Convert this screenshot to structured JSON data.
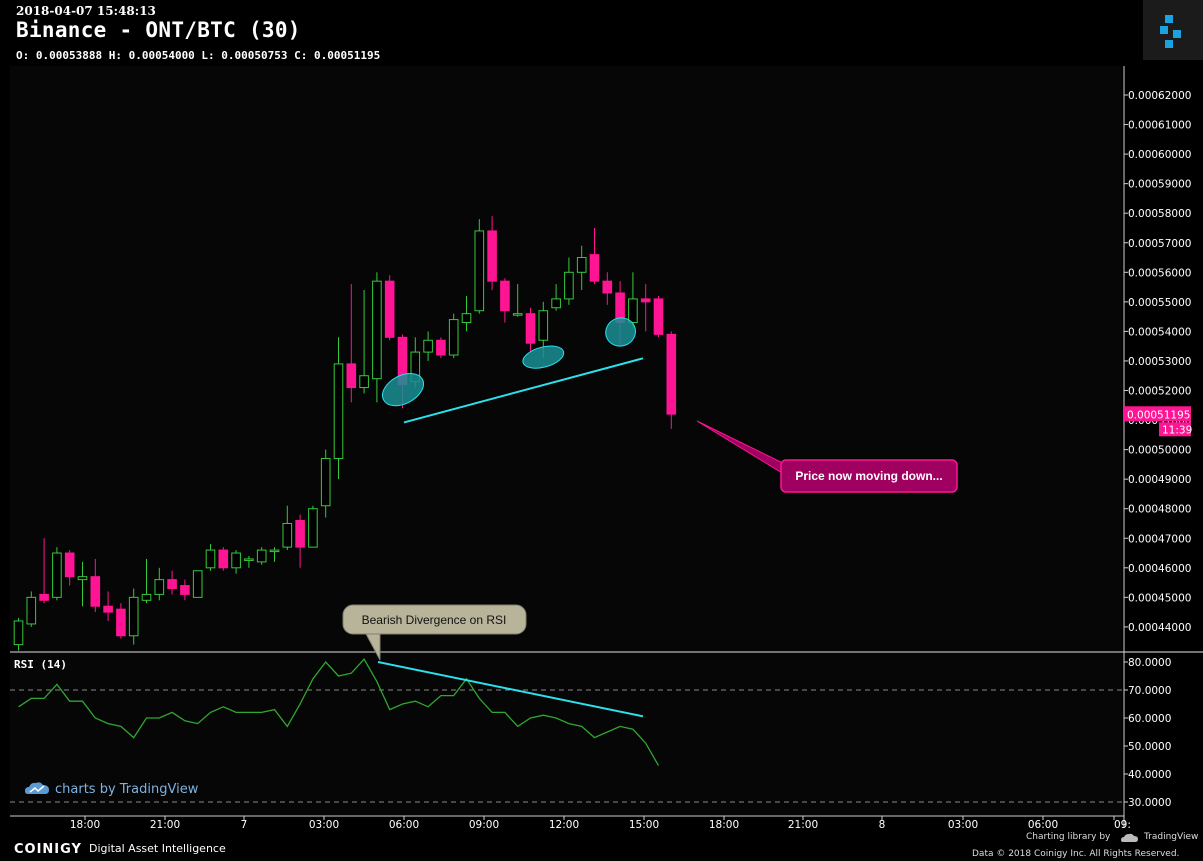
{
  "header": {
    "timestamp": "2018-04-07 15:48:13",
    "title": "Binance - ONT/BTC (30)",
    "ohlc": "O: 0.00053888 H: 0.00054000 L: 0.00050753 C: 0.00051195"
  },
  "colors": {
    "up": "#35c93c",
    "down": "#ff1493",
    "annotation_line": "#2de1ec",
    "ellipse_fill": "#1a8f94",
    "rsi": "#2ea82e"
  },
  "chart_data": [
    {
      "type": "candlestick",
      "title": "Binance - ONT/BTC (30)",
      "x_tick_labels": [
        "18:00",
        "21:00",
        "7",
        "03:00",
        "06:00",
        "09:00",
        "12:00",
        "15:00",
        "18:00",
        "21:00",
        "8",
        "03:00",
        "06:00",
        "09:"
      ],
      "y_tick_labels": [
        "0.00062000",
        "0.00061000",
        "0.00060000",
        "0.00059000",
        "0.00058000",
        "0.00057000",
        "0.00056000",
        "0.00055000",
        "0.00054000",
        "0.00053000",
        "0.00052000",
        "0.00051000",
        "0.00050000",
        "0.00049000",
        "0.00048000",
        "0.00047000",
        "0.00046000",
        "0.00045000",
        "0.00044000"
      ],
      "ylim": [
        0.000433,
        0.000632
      ],
      "last_price_label": "0.00051195",
      "countdown_label": "11:39",
      "candles": [
        {
          "t": 0,
          "o": 0.000434,
          "h": 0.000443,
          "l": 0.000432,
          "c": 0.000442
        },
        {
          "t": 1,
          "o": 0.000441,
          "h": 0.000452,
          "l": 0.00044,
          "c": 0.00045
        },
        {
          "t": 2,
          "o": 0.000451,
          "h": 0.00047,
          "l": 0.000448,
          "c": 0.000449
        },
        {
          "t": 3,
          "o": 0.00045,
          "h": 0.000467,
          "l": 0.000449,
          "c": 0.000465
        },
        {
          "t": 4,
          "o": 0.000465,
          "h": 0.000466,
          "l": 0.000454,
          "c": 0.000457
        },
        {
          "t": 5,
          "o": 0.000456,
          "h": 0.000462,
          "l": 0.000447,
          "c": 0.000457
        },
        {
          "t": 6,
          "o": 0.000457,
          "h": 0.000463,
          "l": 0.000445,
          "c": 0.000447
        },
        {
          "t": 7,
          "o": 0.000447,
          "h": 0.000452,
          "l": 0.000442,
          "c": 0.000445
        },
        {
          "t": 8,
          "o": 0.000446,
          "h": 0.000448,
          "l": 0.000436,
          "c": 0.000437
        },
        {
          "t": 9,
          "o": 0.000437,
          "h": 0.000453,
          "l": 0.000434,
          "c": 0.00045
        },
        {
          "t": 10,
          "o": 0.000449,
          "h": 0.000463,
          "l": 0.000448,
          "c": 0.000451
        },
        {
          "t": 11,
          "o": 0.000451,
          "h": 0.00046,
          "l": 0.000449,
          "c": 0.000456
        },
        {
          "t": 12,
          "o": 0.000456,
          "h": 0.000459,
          "l": 0.000451,
          "c": 0.000453
        },
        {
          "t": 13,
          "o": 0.000454,
          "h": 0.000456,
          "l": 0.000449,
          "c": 0.000451
        },
        {
          "t": 14,
          "o": 0.00045,
          "h": 0.000459,
          "l": 0.00045,
          "c": 0.000459
        },
        {
          "t": 15,
          "o": 0.00046,
          "h": 0.000468,
          "l": 0.000459,
          "c": 0.000466
        },
        {
          "t": 16,
          "o": 0.000466,
          "h": 0.000467,
          "l": 0.000459,
          "c": 0.00046
        },
        {
          "t": 17,
          "o": 0.00046,
          "h": 0.000466,
          "l": 0.000458,
          "c": 0.000465
        },
        {
          "t": 18,
          "o": 0.000463,
          "h": 0.000464,
          "l": 0.00046,
          "c": 0.000463
        },
        {
          "t": 19,
          "o": 0.000462,
          "h": 0.000467,
          "l": 0.000461,
          "c": 0.000466
        },
        {
          "t": 20,
          "o": 0.000466,
          "h": 0.000467,
          "l": 0.000462,
          "c": 0.000466
        },
        {
          "t": 21,
          "o": 0.000467,
          "h": 0.000481,
          "l": 0.000466,
          "c": 0.000475
        },
        {
          "t": 22,
          "o": 0.000476,
          "h": 0.000478,
          "l": 0.00046,
          "c": 0.000467
        },
        {
          "t": 23,
          "o": 0.000467,
          "h": 0.000481,
          "l": 0.000467,
          "c": 0.00048
        },
        {
          "t": 24,
          "o": 0.000481,
          "h": 0.0005,
          "l": 0.000477,
          "c": 0.000497
        },
        {
          "t": 25,
          "o": 0.000497,
          "h": 0.000538,
          "l": 0.00049,
          "c": 0.000529
        },
        {
          "t": 26,
          "o": 0.000529,
          "h": 0.000556,
          "l": 0.000516,
          "c": 0.000521
        },
        {
          "t": 27,
          "o": 0.000521,
          "h": 0.000554,
          "l": 0.000519,
          "c": 0.000525
        },
        {
          "t": 28,
          "o": 0.000524,
          "h": 0.00056,
          "l": 0.000516,
          "c": 0.000557
        },
        {
          "t": 29,
          "o": 0.000557,
          "h": 0.000559,
          "l": 0.000537,
          "c": 0.000538
        },
        {
          "t": 30,
          "o": 0.000538,
          "h": 0.000539,
          "l": 0.000514,
          "c": 0.000522
        },
        {
          "t": 31,
          "o": 0.000523,
          "h": 0.000538,
          "l": 0.000521,
          "c": 0.000533
        },
        {
          "t": 32,
          "o": 0.000533,
          "h": 0.00054,
          "l": 0.00053,
          "c": 0.000537
        },
        {
          "t": 33,
          "o": 0.000537,
          "h": 0.000538,
          "l": 0.000531,
          "c": 0.000532
        },
        {
          "t": 34,
          "o": 0.000532,
          "h": 0.000546,
          "l": 0.000531,
          "c": 0.000544
        },
        {
          "t": 35,
          "o": 0.000543,
          "h": 0.000552,
          "l": 0.00054,
          "c": 0.000546
        },
        {
          "t": 36,
          "o": 0.000547,
          "h": 0.000578,
          "l": 0.000546,
          "c": 0.000574
        },
        {
          "t": 37,
          "o": 0.000574,
          "h": 0.000579,
          "l": 0.000554,
          "c": 0.000557
        },
        {
          "t": 38,
          "o": 0.000557,
          "h": 0.000558,
          "l": 0.000543,
          "c": 0.000547
        },
        {
          "t": 39,
          "o": 0.000546,
          "h": 0.000556,
          "l": 0.000545,
          "c": 0.000546
        },
        {
          "t": 40,
          "o": 0.000546,
          "h": 0.000548,
          "l": 0.000533,
          "c": 0.000536
        },
        {
          "t": 41,
          "o": 0.000537,
          "h": 0.00055,
          "l": 0.000531,
          "c": 0.000547
        },
        {
          "t": 42,
          "o": 0.000548,
          "h": 0.000556,
          "l": 0.000547,
          "c": 0.000551
        },
        {
          "t": 43,
          "o": 0.000551,
          "h": 0.000565,
          "l": 0.000549,
          "c": 0.00056
        },
        {
          "t": 44,
          "o": 0.00056,
          "h": 0.000569,
          "l": 0.000554,
          "c": 0.000565
        },
        {
          "t": 45,
          "o": 0.000566,
          "h": 0.000575,
          "l": 0.000556,
          "c": 0.000557
        },
        {
          "t": 46,
          "o": 0.000557,
          "h": 0.00056,
          "l": 0.000549,
          "c": 0.000553
        },
        {
          "t": 47,
          "o": 0.000553,
          "h": 0.000557,
          "l": 0.000535,
          "c": 0.000543
        },
        {
          "t": 48,
          "o": 0.000543,
          "h": 0.00056,
          "l": 0.000541,
          "c": 0.000551
        },
        {
          "t": 49,
          "o": 0.000551,
          "h": 0.000556,
          "l": 0.00054,
          "c": 0.00055
        },
        {
          "t": 50,
          "o": 0.000551,
          "h": 0.000552,
          "l": 0.000538,
          "c": 0.000539
        },
        {
          "t": 51,
          "o": 0.000539,
          "h": 0.00054,
          "l": 0.000507,
          "c": 0.000512
        }
      ],
      "annotations": [
        {
          "text": "Price now moving down..."
        },
        {
          "text": "Bearish Divergence on RSI"
        }
      ]
    },
    {
      "type": "line",
      "title": "RSI (14)",
      "y_tick_labels": [
        "80.0000",
        "70.0000",
        "60.0000",
        "50.0000",
        "40.0000",
        "30.0000"
      ],
      "ylim": [
        28,
        82.5
      ],
      "reference_levels": [
        70,
        30
      ],
      "series": [
        {
          "values": [
            64,
            67,
            67,
            72,
            66,
            66,
            60,
            58,
            57,
            53,
            60,
            60,
            62,
            59,
            58,
            62,
            64,
            62,
            62,
            62,
            63,
            57,
            65,
            74,
            80,
            75,
            76,
            81,
            73,
            63,
            65,
            66,
            64,
            68,
            68,
            74,
            67,
            62,
            62,
            57,
            60,
            61,
            60,
            58,
            57,
            53,
            55,
            57,
            56,
            51,
            43
          ]
        }
      ]
    }
  ],
  "watermark": {
    "text": "charts by TradingView"
  },
  "footer": {
    "brand": "COINIGY",
    "tagline": "Digital Asset Intelligence",
    "charting_library": "Charting library by",
    "tradingview": "TradingView",
    "copyright": "Data © 2018  Coinigy Inc. All Rights Reserved."
  }
}
